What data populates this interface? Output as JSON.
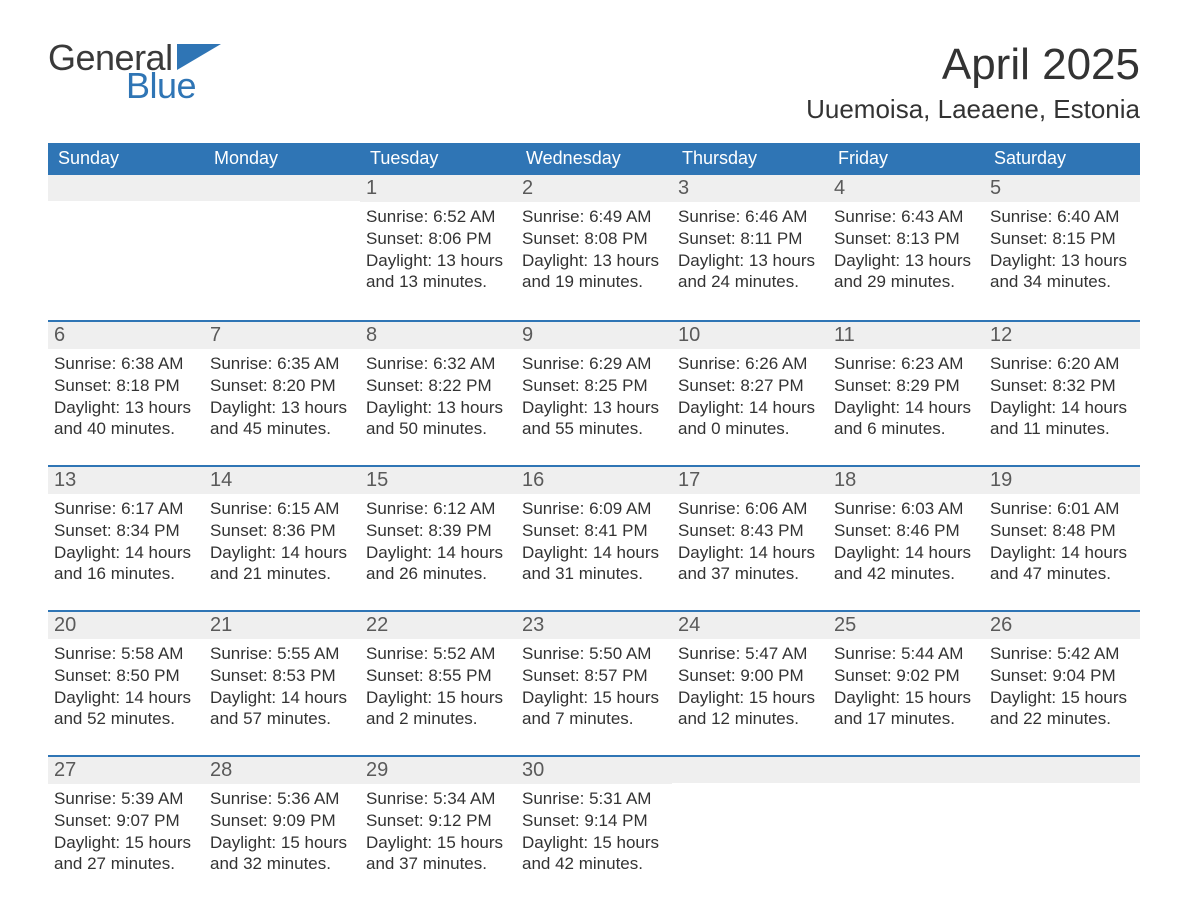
{
  "brand": {
    "word1": "General",
    "word2": "Blue",
    "accent_color": "#2f75b5",
    "text_color": "#3a3a3a"
  },
  "title": "April 2025",
  "location": "Uuemoisa, Laeaene, Estonia",
  "colors": {
    "header_bg": "#2f75b5",
    "header_text": "#ffffff",
    "daynum_bg": "#efefef",
    "daynum_text": "#5a5a5a",
    "body_text": "#333333",
    "week_border": "#2f75b5",
    "page_bg": "#ffffff"
  },
  "typography": {
    "month_title_fontsize": 44,
    "location_fontsize": 26,
    "dow_fontsize": 18,
    "daynum_fontsize": 20,
    "body_fontsize": 17
  },
  "day_labels": [
    "Sunday",
    "Monday",
    "Tuesday",
    "Wednesday",
    "Thursday",
    "Friday",
    "Saturday"
  ],
  "weeks": [
    [
      {
        "n": "",
        "sunrise": "",
        "sunset": "",
        "daylight": ""
      },
      {
        "n": "",
        "sunrise": "",
        "sunset": "",
        "daylight": ""
      },
      {
        "n": "1",
        "sunrise": "Sunrise: 6:52 AM",
        "sunset": "Sunset: 8:06 PM",
        "daylight": "Daylight: 13 hours and 13 minutes."
      },
      {
        "n": "2",
        "sunrise": "Sunrise: 6:49 AM",
        "sunset": "Sunset: 8:08 PM",
        "daylight": "Daylight: 13 hours and 19 minutes."
      },
      {
        "n": "3",
        "sunrise": "Sunrise: 6:46 AM",
        "sunset": "Sunset: 8:11 PM",
        "daylight": "Daylight: 13 hours and 24 minutes."
      },
      {
        "n": "4",
        "sunrise": "Sunrise: 6:43 AM",
        "sunset": "Sunset: 8:13 PM",
        "daylight": "Daylight: 13 hours and 29 minutes."
      },
      {
        "n": "5",
        "sunrise": "Sunrise: 6:40 AM",
        "sunset": "Sunset: 8:15 PM",
        "daylight": "Daylight: 13 hours and 34 minutes."
      }
    ],
    [
      {
        "n": "6",
        "sunrise": "Sunrise: 6:38 AM",
        "sunset": "Sunset: 8:18 PM",
        "daylight": "Daylight: 13 hours and 40 minutes."
      },
      {
        "n": "7",
        "sunrise": "Sunrise: 6:35 AM",
        "sunset": "Sunset: 8:20 PM",
        "daylight": "Daylight: 13 hours and 45 minutes."
      },
      {
        "n": "8",
        "sunrise": "Sunrise: 6:32 AM",
        "sunset": "Sunset: 8:22 PM",
        "daylight": "Daylight: 13 hours and 50 minutes."
      },
      {
        "n": "9",
        "sunrise": "Sunrise: 6:29 AM",
        "sunset": "Sunset: 8:25 PM",
        "daylight": "Daylight: 13 hours and 55 minutes."
      },
      {
        "n": "10",
        "sunrise": "Sunrise: 6:26 AM",
        "sunset": "Sunset: 8:27 PM",
        "daylight": "Daylight: 14 hours and 0 minutes."
      },
      {
        "n": "11",
        "sunrise": "Sunrise: 6:23 AM",
        "sunset": "Sunset: 8:29 PM",
        "daylight": "Daylight: 14 hours and 6 minutes."
      },
      {
        "n": "12",
        "sunrise": "Sunrise: 6:20 AM",
        "sunset": "Sunset: 8:32 PM",
        "daylight": "Daylight: 14 hours and 11 minutes."
      }
    ],
    [
      {
        "n": "13",
        "sunrise": "Sunrise: 6:17 AM",
        "sunset": "Sunset: 8:34 PM",
        "daylight": "Daylight: 14 hours and 16 minutes."
      },
      {
        "n": "14",
        "sunrise": "Sunrise: 6:15 AM",
        "sunset": "Sunset: 8:36 PM",
        "daylight": "Daylight: 14 hours and 21 minutes."
      },
      {
        "n": "15",
        "sunrise": "Sunrise: 6:12 AM",
        "sunset": "Sunset: 8:39 PM",
        "daylight": "Daylight: 14 hours and 26 minutes."
      },
      {
        "n": "16",
        "sunrise": "Sunrise: 6:09 AM",
        "sunset": "Sunset: 8:41 PM",
        "daylight": "Daylight: 14 hours and 31 minutes."
      },
      {
        "n": "17",
        "sunrise": "Sunrise: 6:06 AM",
        "sunset": "Sunset: 8:43 PM",
        "daylight": "Daylight: 14 hours and 37 minutes."
      },
      {
        "n": "18",
        "sunrise": "Sunrise: 6:03 AM",
        "sunset": "Sunset: 8:46 PM",
        "daylight": "Daylight: 14 hours and 42 minutes."
      },
      {
        "n": "19",
        "sunrise": "Sunrise: 6:01 AM",
        "sunset": "Sunset: 8:48 PM",
        "daylight": "Daylight: 14 hours and 47 minutes."
      }
    ],
    [
      {
        "n": "20",
        "sunrise": "Sunrise: 5:58 AM",
        "sunset": "Sunset: 8:50 PM",
        "daylight": "Daylight: 14 hours and 52 minutes."
      },
      {
        "n": "21",
        "sunrise": "Sunrise: 5:55 AM",
        "sunset": "Sunset: 8:53 PM",
        "daylight": "Daylight: 14 hours and 57 minutes."
      },
      {
        "n": "22",
        "sunrise": "Sunrise: 5:52 AM",
        "sunset": "Sunset: 8:55 PM",
        "daylight": "Daylight: 15 hours and 2 minutes."
      },
      {
        "n": "23",
        "sunrise": "Sunrise: 5:50 AM",
        "sunset": "Sunset: 8:57 PM",
        "daylight": "Daylight: 15 hours and 7 minutes."
      },
      {
        "n": "24",
        "sunrise": "Sunrise: 5:47 AM",
        "sunset": "Sunset: 9:00 PM",
        "daylight": "Daylight: 15 hours and 12 minutes."
      },
      {
        "n": "25",
        "sunrise": "Sunrise: 5:44 AM",
        "sunset": "Sunset: 9:02 PM",
        "daylight": "Daylight: 15 hours and 17 minutes."
      },
      {
        "n": "26",
        "sunrise": "Sunrise: 5:42 AM",
        "sunset": "Sunset: 9:04 PM",
        "daylight": "Daylight: 15 hours and 22 minutes."
      }
    ],
    [
      {
        "n": "27",
        "sunrise": "Sunrise: 5:39 AM",
        "sunset": "Sunset: 9:07 PM",
        "daylight": "Daylight: 15 hours and 27 minutes."
      },
      {
        "n": "28",
        "sunrise": "Sunrise: 5:36 AM",
        "sunset": "Sunset: 9:09 PM",
        "daylight": "Daylight: 15 hours and 32 minutes."
      },
      {
        "n": "29",
        "sunrise": "Sunrise: 5:34 AM",
        "sunset": "Sunset: 9:12 PM",
        "daylight": "Daylight: 15 hours and 37 minutes."
      },
      {
        "n": "30",
        "sunrise": "Sunrise: 5:31 AM",
        "sunset": "Sunset: 9:14 PM",
        "daylight": "Daylight: 15 hours and 42 minutes."
      },
      {
        "n": "",
        "sunrise": "",
        "sunset": "",
        "daylight": ""
      },
      {
        "n": "",
        "sunrise": "",
        "sunset": "",
        "daylight": ""
      },
      {
        "n": "",
        "sunrise": "",
        "sunset": "",
        "daylight": ""
      }
    ]
  ]
}
